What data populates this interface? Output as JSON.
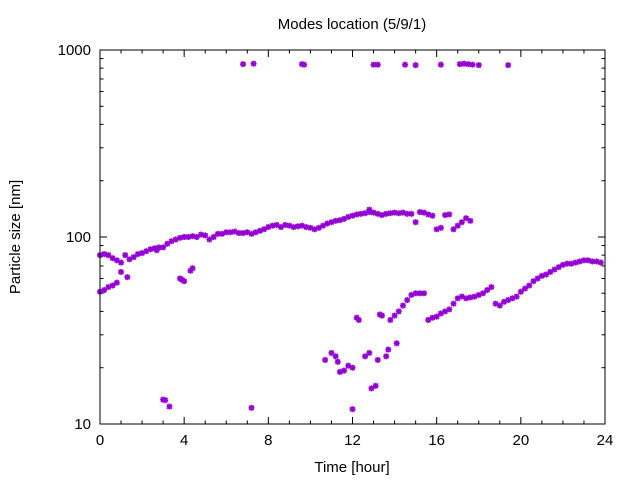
{
  "chart_data": {
    "type": "scatter",
    "title": "Modes location (5/9/1)",
    "xlabel": "Time [hour]",
    "ylabel": "Particle size [nm]",
    "xlim": [
      0,
      24
    ],
    "ylim": [
      10,
      1000
    ],
    "yscale": "log",
    "grid": false,
    "legend": "none",
    "marker_color": "#9400d3",
    "xticks": [
      0,
      4,
      8,
      12,
      16,
      20,
      24
    ],
    "xtick_labels": [
      "0",
      "4",
      "8",
      "12",
      "16",
      "20",
      "24"
    ],
    "yticks": [
      10,
      100,
      1000
    ],
    "ytick_labels": [
      "10",
      "100",
      "1000"
    ],
    "series": [
      {
        "points": [
          [
            6.8,
            840
          ],
          [
            7.3,
            845
          ],
          [
            9.6,
            840
          ],
          [
            9.7,
            835
          ],
          [
            13.0,
            835
          ],
          [
            13.2,
            835
          ],
          [
            14.5,
            835
          ],
          [
            15.0,
            830
          ],
          [
            16.2,
            835
          ],
          [
            17.1,
            840
          ],
          [
            17.3,
            845
          ],
          [
            17.5,
            840
          ],
          [
            17.7,
            835
          ],
          [
            18.0,
            830
          ],
          [
            19.4,
            830
          ],
          [
            0.0,
            80
          ],
          [
            0.2,
            81
          ],
          [
            0.4,
            80
          ],
          [
            0.6,
            77
          ],
          [
            0.8,
            75
          ],
          [
            1.0,
            73
          ],
          [
            1.2,
            80
          ],
          [
            1.4,
            76
          ],
          [
            1.6,
            78
          ],
          [
            1.8,
            81
          ],
          [
            2.0,
            82
          ],
          [
            2.2,
            84
          ],
          [
            2.4,
            86
          ],
          [
            2.6,
            87
          ],
          [
            2.8,
            88
          ],
          [
            3.0,
            88
          ],
          [
            3.2,
            92
          ],
          [
            3.4,
            95
          ],
          [
            3.6,
            97
          ],
          [
            3.8,
            99
          ],
          [
            4.0,
            100
          ],
          [
            4.2,
            100
          ],
          [
            4.4,
            101
          ],
          [
            4.6,
            100
          ],
          [
            4.8,
            103
          ],
          [
            5.0,
            102
          ],
          [
            5.2,
            97
          ],
          [
            5.4,
            100
          ],
          [
            5.6,
            104
          ],
          [
            5.8,
            104
          ],
          [
            6.0,
            106
          ],
          [
            6.2,
            106
          ],
          [
            6.4,
            107
          ],
          [
            6.6,
            105
          ],
          [
            6.8,
            105
          ],
          [
            7.0,
            106
          ],
          [
            7.2,
            104
          ],
          [
            7.4,
            106
          ],
          [
            7.6,
            108
          ],
          [
            7.8,
            110
          ],
          [
            8.0,
            113
          ],
          [
            8.2,
            115
          ],
          [
            8.4,
            116
          ],
          [
            8.6,
            113
          ],
          [
            8.8,
            116
          ],
          [
            9.0,
            115
          ],
          [
            9.2,
            113
          ],
          [
            9.4,
            114
          ],
          [
            9.6,
            115
          ],
          [
            9.8,
            113
          ],
          [
            10.0,
            112
          ],
          [
            10.2,
            110
          ],
          [
            10.4,
            112
          ],
          [
            10.6,
            115
          ],
          [
            10.8,
            118
          ],
          [
            11.0,
            120
          ],
          [
            11.2,
            122
          ],
          [
            11.4,
            123
          ],
          [
            11.6,
            125
          ],
          [
            11.8,
            128
          ],
          [
            12.0,
            130
          ],
          [
            12.2,
            132
          ],
          [
            12.4,
            133
          ],
          [
            12.6,
            134
          ],
          [
            12.8,
            136
          ],
          [
            13.0,
            135
          ],
          [
            13.2,
            133
          ],
          [
            13.4,
            131
          ],
          [
            13.6,
            133
          ],
          [
            13.8,
            134
          ],
          [
            14.0,
            135
          ],
          [
            14.2,
            134
          ],
          [
            14.4,
            135
          ],
          [
            14.6,
            133
          ],
          [
            14.8,
            133
          ],
          [
            15.0,
            120
          ],
          [
            15.2,
            136
          ],
          [
            15.4,
            135
          ],
          [
            15.6,
            132
          ],
          [
            15.8,
            130
          ],
          [
            16.0,
            110
          ],
          [
            16.2,
            112
          ],
          [
            16.4,
            131
          ],
          [
            16.6,
            132
          ],
          [
            16.8,
            110
          ],
          [
            17.0,
            115
          ],
          [
            17.2,
            120
          ],
          [
            17.4,
            126
          ],
          [
            17.6,
            122
          ],
          [
            12.8,
            140
          ],
          [
            0.0,
            51
          ],
          [
            0.2,
            52
          ],
          [
            0.4,
            54
          ],
          [
            0.6,
            55
          ],
          [
            0.8,
            57
          ],
          [
            1.0,
            65
          ],
          [
            1.3,
            61
          ],
          [
            2.7,
            85
          ],
          [
            3.0,
            13.5
          ],
          [
            3.1,
            13.4
          ],
          [
            3.3,
            12.4
          ],
          [
            3.8,
            60
          ],
          [
            3.9,
            59
          ],
          [
            4.0,
            58
          ],
          [
            4.3,
            66
          ],
          [
            4.4,
            68
          ],
          [
            7.2,
            12.2
          ],
          [
            10.7,
            22
          ],
          [
            11.0,
            24
          ],
          [
            11.2,
            23
          ],
          [
            11.3,
            21.5
          ],
          [
            11.4,
            19
          ],
          [
            11.6,
            19.3
          ],
          [
            11.8,
            20.5
          ],
          [
            12.0,
            12
          ],
          [
            12.0,
            20
          ],
          [
            12.2,
            37
          ],
          [
            12.3,
            36
          ],
          [
            12.6,
            23
          ],
          [
            12.8,
            24
          ],
          [
            12.9,
            15.5
          ],
          [
            13.1,
            16
          ],
          [
            13.2,
            22
          ],
          [
            13.3,
            38.5
          ],
          [
            13.4,
            38
          ],
          [
            13.6,
            23
          ],
          [
            13.7,
            25
          ],
          [
            13.8,
            36
          ],
          [
            14.0,
            38
          ],
          [
            14.1,
            27
          ],
          [
            14.2,
            40
          ],
          [
            14.4,
            43
          ],
          [
            14.6,
            46
          ],
          [
            14.8,
            49
          ],
          [
            15.0,
            50
          ],
          [
            15.2,
            50
          ],
          [
            15.4,
            50
          ],
          [
            15.6,
            36
          ],
          [
            15.8,
            37
          ],
          [
            16.0,
            37.5
          ],
          [
            16.2,
            39
          ],
          [
            16.4,
            40
          ],
          [
            16.6,
            41
          ],
          [
            16.8,
            44
          ],
          [
            17.0,
            47
          ],
          [
            17.2,
            48
          ],
          [
            17.4,
            47
          ],
          [
            17.6,
            47.5
          ],
          [
            17.8,
            48
          ],
          [
            18.0,
            49
          ],
          [
            18.2,
            50
          ],
          [
            18.4,
            52
          ],
          [
            18.6,
            54
          ],
          [
            18.8,
            44
          ],
          [
            19.0,
            43
          ],
          [
            19.2,
            45
          ],
          [
            19.4,
            46
          ],
          [
            19.6,
            47
          ],
          [
            19.8,
            48
          ],
          [
            20.0,
            51
          ],
          [
            20.2,
            53
          ],
          [
            20.4,
            55
          ],
          [
            20.6,
            58
          ],
          [
            20.8,
            60
          ],
          [
            21.0,
            62
          ],
          [
            21.2,
            63
          ],
          [
            21.4,
            65
          ],
          [
            21.6,
            67
          ],
          [
            21.8,
            69
          ],
          [
            22.0,
            71
          ],
          [
            22.2,
            72
          ],
          [
            22.4,
            72
          ],
          [
            22.6,
            73
          ],
          [
            22.8,
            74
          ],
          [
            23.0,
            75
          ],
          [
            23.2,
            75
          ],
          [
            23.4,
            74
          ],
          [
            23.6,
            74
          ],
          [
            23.8,
            73
          ]
        ]
      }
    ]
  }
}
